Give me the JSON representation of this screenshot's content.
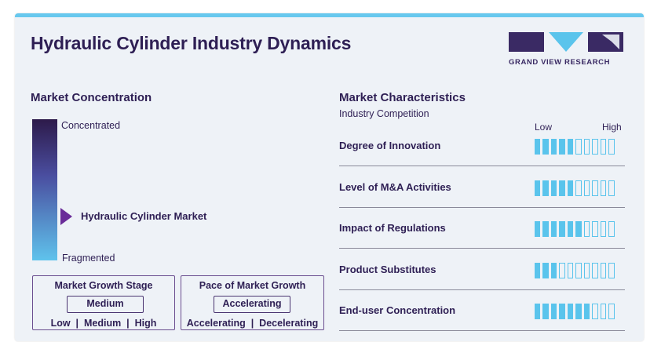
{
  "title": "Hydraulic Cylinder Industry Dynamics",
  "logo": {
    "text": "GRAND VIEW RESEARCH",
    "colors": {
      "dark": "#3a2a64",
      "accent": "#5ac4ec"
    }
  },
  "market_concentration": {
    "heading": "Market Concentration",
    "top_label": "Concentrated",
    "bottom_label": "Fragmented",
    "marker_label": "Hydraulic Cylinder Market"
  },
  "growth_stage": {
    "title": "Market Growth Stage",
    "value": "Medium",
    "scale": "Low  |  Medium  |  High"
  },
  "growth_pace": {
    "title": "Pace of Market Growth",
    "value": "Accelerating",
    "scale": "Accelerating  |  Decelerating"
  },
  "characteristics": {
    "heading": "Market Characteristics",
    "subheading": "Industry Competition",
    "low_label": "Low",
    "high_label": "High",
    "max_level": 10,
    "rows": [
      {
        "label": "Degree of Innovation",
        "level": 5
      },
      {
        "label": "Level of M&A Activities",
        "level": 5
      },
      {
        "label": "Impact of Regulations",
        "level": 6
      },
      {
        "label": "Product Substitutes",
        "level": 3
      },
      {
        "label": "End-user Concentration",
        "level": 7
      }
    ]
  }
}
